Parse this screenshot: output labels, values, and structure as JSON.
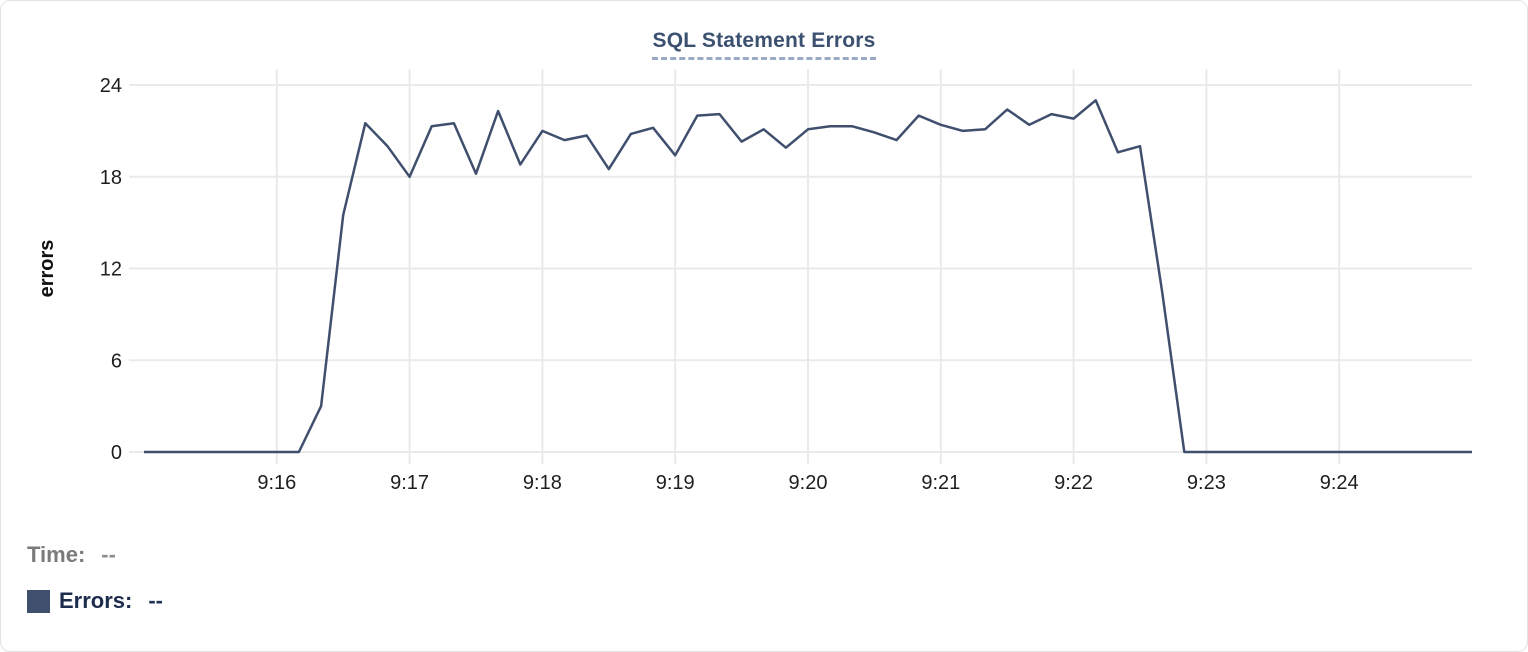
{
  "chart": {
    "title": "SQL Statement Errors"
  },
  "legend": {
    "time_label": "Time:",
    "time_value": "--",
    "errors_label": "Errors:",
    "errors_value": "--",
    "swatch_color": "#3f4f6d"
  },
  "colors": {
    "line": "#3f4f6d",
    "title_text": "#3c5070",
    "title_underline": "#9aa9c4",
    "grid": "#eaeaea",
    "axis_text": "#1e1e1e",
    "axis_title_text": "#111111",
    "card_border": "#e2e2e2",
    "legend_time": "#7b7b7b",
    "legend_errors": "#1d2c4c"
  },
  "chart_data": {
    "type": "line",
    "title": "SQL Statement Errors",
    "xlabel": "",
    "ylabel": "errors",
    "ylim": [
      0,
      24
    ],
    "y_ticks": [
      0,
      6,
      12,
      18,
      24
    ],
    "x_ticks": [
      "9:16",
      "9:17",
      "9:18",
      "9:19",
      "9:20",
      "9:21",
      "9:22",
      "9:23",
      "9:24"
    ],
    "x_range": [
      "9:15:00",
      "9:25:00"
    ],
    "grid": true,
    "legend_position": "bottom-left",
    "series": [
      {
        "name": "Errors",
        "color": "#3f4f6d",
        "x": [
          "9:15:00",
          "9:15:10",
          "9:15:20",
          "9:15:30",
          "9:15:40",
          "9:15:50",
          "9:16:00",
          "9:16:10",
          "9:16:20",
          "9:16:30",
          "9:16:40",
          "9:16:50",
          "9:17:00",
          "9:17:10",
          "9:17:20",
          "9:17:30",
          "9:17:40",
          "9:17:50",
          "9:18:00",
          "9:18:10",
          "9:18:20",
          "9:18:30",
          "9:18:40",
          "9:18:50",
          "9:19:00",
          "9:19:10",
          "9:19:20",
          "9:19:30",
          "9:19:40",
          "9:19:50",
          "9:20:00",
          "9:20:10",
          "9:20:20",
          "9:20:30",
          "9:20:40",
          "9:20:50",
          "9:21:00",
          "9:21:10",
          "9:21:20",
          "9:21:30",
          "9:21:40",
          "9:21:50",
          "9:22:00",
          "9:22:10",
          "9:22:20",
          "9:22:30",
          "9:22:40",
          "9:22:50",
          "9:23:00",
          "9:23:10",
          "9:23:20",
          "9:23:30",
          "9:23:40",
          "9:23:50",
          "9:24:00",
          "9:24:10",
          "9:24:20",
          "9:24:30",
          "9:24:40",
          "9:24:50",
          "9:25:00"
        ],
        "values": [
          0,
          0,
          0,
          0,
          0,
          0,
          0,
          0,
          3,
          15.5,
          21.5,
          20,
          18,
          21.3,
          21.5,
          18.2,
          22.3,
          18.8,
          21,
          20.4,
          20.7,
          18.5,
          20.8,
          21.2,
          19.4,
          22,
          22.1,
          20.3,
          21.1,
          19.9,
          21.1,
          21.3,
          21.3,
          20.9,
          20.4,
          22,
          21.4,
          21,
          21.1,
          22.4,
          21.4,
          22.1,
          21.8,
          23,
          19.6,
          20,
          10.5,
          0,
          0,
          0,
          0,
          0,
          0,
          0,
          0,
          0,
          0,
          0,
          0,
          0,
          0
        ]
      }
    ]
  }
}
